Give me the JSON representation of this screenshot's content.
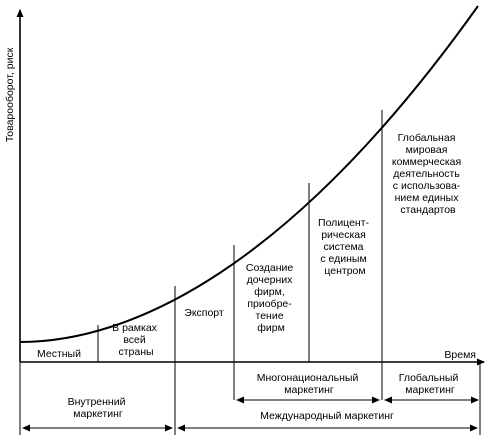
{
  "y_axis_label": "Товарооборот, риск",
  "x_axis_label": "Время",
  "stages": [
    {
      "id": "local",
      "lines": [
        "Местный"
      ]
    },
    {
      "id": "national",
      "lines": [
        "В рамках",
        "всей",
        "страны"
      ]
    },
    {
      "id": "export",
      "lines": [
        "Экспорт"
      ]
    },
    {
      "id": "subsidiaries",
      "lines": [
        "Создание",
        "дочерних",
        "фирм,",
        "приобре-",
        "тение",
        "фирм"
      ]
    },
    {
      "id": "polycentric",
      "lines": [
        "Полицент-",
        "рическая",
        "система",
        "с единым",
        "центром"
      ]
    },
    {
      "id": "global",
      "lines": [
        "Глобальная",
        "мировая",
        "коммерческая",
        "деятельность",
        "с использова-",
        "нием единых",
        "стандартов"
      ]
    }
  ],
  "brackets": {
    "multinational": {
      "lines": [
        "Многонациональный",
        "маркетинг"
      ]
    },
    "global": {
      "lines": [
        "Глобальный",
        "маркетинг"
      ]
    },
    "domestic": {
      "lines": [
        "Внутренний",
        "маркетинг"
      ]
    },
    "international": {
      "lines": [
        "Международный маркетинг"
      ]
    }
  }
}
